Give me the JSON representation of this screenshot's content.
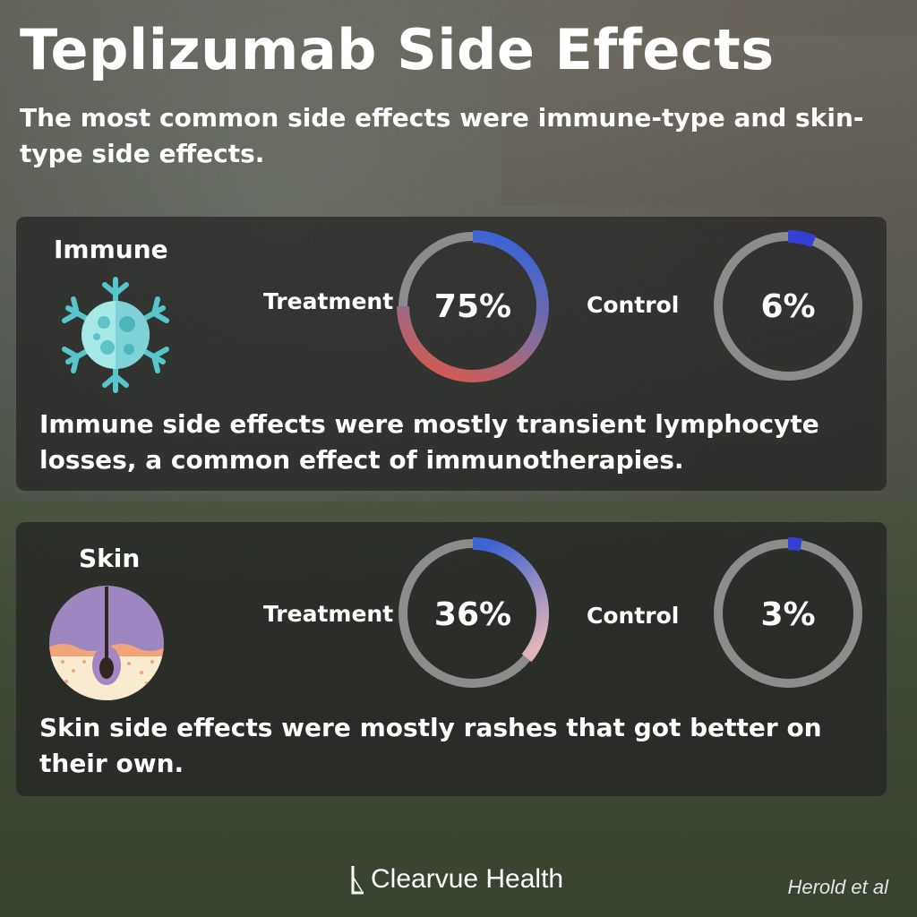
{
  "title": "Teplizumab Side Effects",
  "subtitle": "The most common side effects were immune-type and skin-type side effects.",
  "colors": {
    "ring_track": "#8c8c8c",
    "immune_gradient": [
      "#3e64d2",
      "#8a6e98",
      "#d75a4c"
    ],
    "skin_gradient": [
      "#3e64d2",
      "#e2b5b9"
    ],
    "control_arc": "#3340d6"
  },
  "chart_data": [
    {
      "type": "pie",
      "category": "Immune",
      "icon": "immune-cell-icon",
      "series": [
        {
          "name": "Treatment",
          "value": 75,
          "label": "75%"
        },
        {
          "name": "Control",
          "value": 6,
          "label": "6%"
        }
      ],
      "note": "Immune side effects were mostly transient lymphocyte losses, a common effect of immunotherapies."
    },
    {
      "type": "pie",
      "category": "Skin",
      "icon": "skin-hair-follicle-icon",
      "series": [
        {
          "name": "Treatment",
          "value": 36,
          "label": "36%"
        },
        {
          "name": "Control",
          "value": 3,
          "label": "3%"
        }
      ],
      "note": "Skin side effects were mostly rashes that got better on their own."
    }
  ],
  "footer": {
    "brand": "Clearvue Health",
    "citation": "Herold et al"
  }
}
